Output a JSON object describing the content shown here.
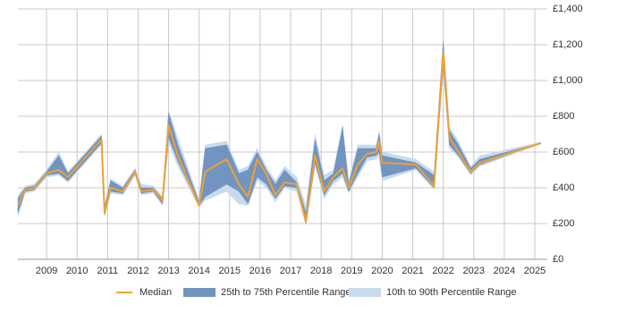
{
  "chart_data": {
    "type": "band-line",
    "x": [
      2008.06,
      2008.3,
      2008.6,
      2009.0,
      2009.4,
      2009.7,
      2010.8,
      2010.9,
      2011.1,
      2011.5,
      2011.9,
      2012.1,
      2012.5,
      2012.8,
      2013.0,
      2013.3,
      2014.0,
      2014.2,
      2014.9,
      2015.3,
      2015.6,
      2015.9,
      2016.2,
      2016.5,
      2016.8,
      2017.2,
      2017.5,
      2017.8,
      2018.1,
      2018.4,
      2018.7,
      2018.9,
      2019.2,
      2019.5,
      2019.8,
      2019.9,
      2020.0,
      2021.1,
      2021.7,
      2022.0,
      2022.2,
      2022.5,
      2022.9,
      2023.2,
      2025.2
    ],
    "series": [
      {
        "name": "10th to 90th Percentile Range",
        "color": "#c8dbee",
        "lower": [
          240,
          370,
          380,
          460,
          470,
          430,
          640,
          240,
          370,
          360,
          470,
          360,
          370,
          300,
          650,
          520,
          290,
          330,
          380,
          310,
          300,
          440,
          400,
          320,
          400,
          380,
          190,
          520,
          340,
          420,
          460,
          370,
          460,
          550,
          560,
          580,
          440,
          500,
          390,
          1060,
          620,
          570,
          470,
          520,
          645
        ],
        "upper": [
          360,
          410,
          420,
          500,
          600,
          490,
          700,
          300,
          450,
          410,
          510,
          420,
          410,
          350,
          830,
          680,
          330,
          640,
          660,
          500,
          520,
          620,
          520,
          440,
          520,
          460,
          300,
          700,
          470,
          500,
          750,
          440,
          640,
          640,
          640,
          720,
          600,
          560,
          490,
          1230,
          740,
          660,
          520,
          580,
          655
        ]
      },
      {
        "name": "25th to 75th Percentile Range",
        "color": "#7294c0",
        "lower": [
          260,
          380,
          390,
          470,
          480,
          440,
          650,
          250,
          380,
          370,
          480,
          370,
          380,
          310,
          680,
          550,
          300,
          350,
          420,
          380,
          310,
          460,
          420,
          340,
          410,
          400,
          200,
          540,
          360,
          440,
          480,
          380,
          480,
          570,
          580,
          600,
          460,
          510,
          400,
          1080,
          640,
          580,
          480,
          530,
          650
        ],
        "upper": [
          340,
          400,
          410,
          490,
          580,
          480,
          690,
          290,
          440,
          400,
          500,
          400,
          400,
          340,
          820,
          640,
          320,
          620,
          640,
          480,
          500,
          600,
          500,
          420,
          500,
          430,
          260,
          670,
          440,
          480,
          740,
          420,
          620,
          620,
          620,
          700,
          580,
          540,
          470,
          1220,
          720,
          640,
          510,
          560,
          650
        ]
      },
      {
        "name": "Median",
        "color": "#f0a030",
        "values": [
          300,
          390,
          400,
          480,
          500,
          460,
          670,
          260,
          400,
          380,
          490,
          380,
          390,
          330,
          750,
          580,
          300,
          490,
          560,
          420,
          350,
          560,
          480,
          360,
          430,
          420,
          210,
          580,
          380,
          460,
          510,
          400,
          530,
          590,
          600,
          660,
          540,
          530,
          410,
          1160,
          680,
          600,
          490,
          540,
          650
        ]
      }
    ],
    "xlim": [
      2008.06,
      2025.41
    ],
    "xticks": [
      2009,
      2010,
      2011,
      2012,
      2013,
      2014,
      2015,
      2016,
      2017,
      2018,
      2019,
      2020,
      2021,
      2022,
      2023,
      2024,
      2025
    ],
    "ylim": [
      0,
      1400
    ],
    "yticks": [
      {
        "value": 0,
        "label": "£0"
      },
      {
        "value": 200,
        "label": "£200"
      },
      {
        "value": 400,
        "label": "£400"
      },
      {
        "value": 600,
        "label": "£600"
      },
      {
        "value": 800,
        "label": "£800"
      },
      {
        "value": 1000,
        "label": "£1,000"
      },
      {
        "value": 1200,
        "label": "£1,200"
      },
      {
        "value": 1400,
        "label": "£1,400"
      }
    ],
    "grid": true
  }
}
